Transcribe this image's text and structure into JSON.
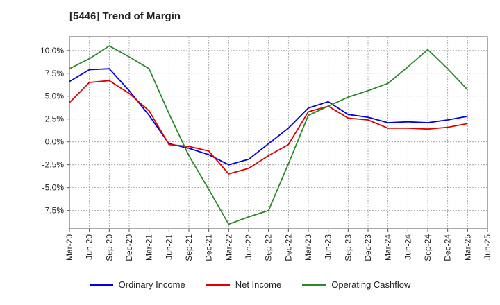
{
  "chart_data": {
    "type": "line",
    "title": "[5446]  Trend of Margin",
    "x": [
      "Mar-20",
      "Jun-20",
      "Sep-20",
      "Dec-20",
      "Mar-21",
      "Jun-21",
      "Sep-21",
      "Dec-21",
      "Mar-22",
      "Jun-22",
      "Sep-22",
      "Dec-22",
      "Mar-23",
      "Jun-23",
      "Sep-23",
      "Dec-23",
      "Mar-24",
      "Jun-24",
      "Sep-24",
      "Dec-24",
      "Mar-25",
      "Jun-25"
    ],
    "yticks": [
      "10.0%",
      "7.5%",
      "5.0%",
      "2.5%",
      "0.0%",
      "-2.5%",
      "-5.0%",
      "-7.5%"
    ],
    "ytick_values": [
      10.0,
      7.5,
      5.0,
      2.5,
      0.0,
      -2.5,
      -5.0,
      -7.5
    ],
    "ylim": [
      -9.5,
      11.5
    ],
    "grid": true,
    "legend_position": "bottom",
    "series": [
      {
        "name": "Ordinary Income",
        "color": "#0000e0",
        "values": [
          6.6,
          7.9,
          8.0,
          5.6,
          2.9,
          -0.2,
          -0.7,
          -1.4,
          -2.5,
          -1.9,
          -0.2,
          1.5,
          3.7,
          4.4,
          3.0,
          2.7,
          2.1,
          2.2,
          2.1,
          2.4,
          2.8,
          null
        ]
      },
      {
        "name": "Net Income",
        "color": "#e00000",
        "values": [
          4.3,
          6.5,
          6.7,
          5.3,
          3.4,
          -0.3,
          -0.5,
          -1.0,
          -3.5,
          -2.9,
          -1.5,
          -0.3,
          3.3,
          3.9,
          2.6,
          2.4,
          1.5,
          1.5,
          1.4,
          1.6,
          2.0,
          null
        ]
      },
      {
        "name": "Operating Cashflow",
        "color": "#2a8a2a",
        "values": [
          8.0,
          9.1,
          10.5,
          9.3,
          8.0,
          3.1,
          -1.5,
          -5.2,
          -9.0,
          -8.2,
          -7.5,
          -2.4,
          2.9,
          3.9,
          4.9,
          5.6,
          6.4,
          8.2,
          10.1,
          8.0,
          5.7,
          null
        ]
      }
    ]
  }
}
